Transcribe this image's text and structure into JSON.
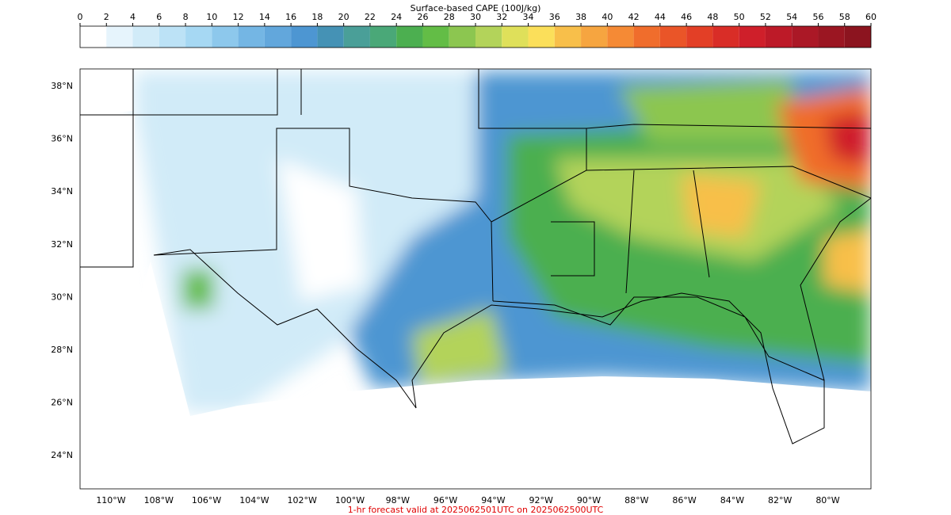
{
  "colorbar": {
    "title": "Surface-based CAPE (100J/kg)",
    "ticks": [
      0,
      2,
      4,
      6,
      8,
      10,
      12,
      14,
      16,
      18,
      20,
      22,
      24,
      26,
      28,
      30,
      32,
      34,
      36,
      38,
      40,
      42,
      44,
      46,
      48,
      50,
      52,
      54,
      56,
      58,
      60
    ],
    "colors": [
      "#ffffff",
      "#e6f4fc",
      "#d1ebf8",
      "#bce2f6",
      "#a6d8f3",
      "#8dc8ec",
      "#74b6e4",
      "#62a7dc",
      "#4d96d2",
      "#4592b5",
      "#4a9f98",
      "#4aa878",
      "#4caf50",
      "#63bd46",
      "#8cc650",
      "#b3d35a",
      "#dfe05a",
      "#fbdf5a",
      "#f8bf4a",
      "#f6a540",
      "#f58a35",
      "#f06d2c",
      "#ea5528",
      "#e33f26",
      "#d92d27",
      "#cf1f2a",
      "#bd1a28",
      "#ab1826",
      "#9b1622",
      "#8c141f"
    ]
  },
  "map": {
    "lat_labels": [
      "38°N",
      "36°N",
      "34°N",
      "32°N",
      "30°N",
      "28°N",
      "26°N",
      "24°N"
    ],
    "lon_labels": [
      "110°W",
      "108°W",
      "106°W",
      "104°W",
      "102°W",
      "100°W",
      "98°W",
      "96°W",
      "94°W",
      "92°W",
      "90°W",
      "88°W",
      "86°W",
      "84°W",
      "82°W",
      "80°W"
    ]
  },
  "footer": "1-hr forecast valid at 2025062501UTC on 2025062500UTC"
}
